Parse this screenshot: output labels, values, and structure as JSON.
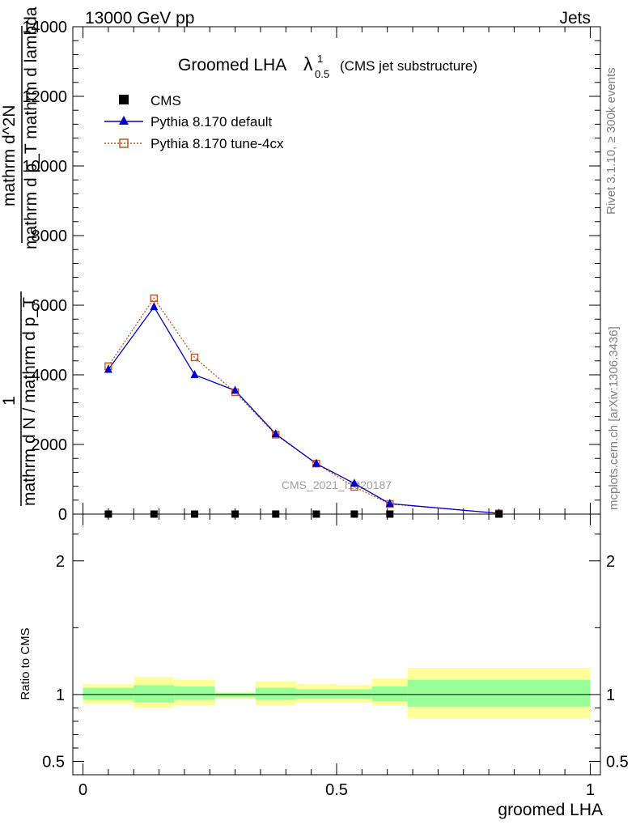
{
  "header": {
    "left": "13000 GeV pp",
    "right": "Jets"
  },
  "title": {
    "main": "Groomed LHA",
    "lambda": "λ",
    "superscript": "1",
    "subscript": "0.5",
    "suffix": "(CMS jet substructure)"
  },
  "side_labels": {
    "rivet": "Rivet 3.1.10, ≥ 300k events",
    "mcplots": "mcplots.cern.ch [arXiv:1306.3436]"
  },
  "watermark": "CMS_2021_I1920187",
  "y_label_top": {
    "one": "1",
    "den": "mathrm d N / mathrm d p_T",
    "frac_num": "mathrm d^2N",
    "frac_den": "mathrm d p_T mathrm d lambda"
  },
  "y_label_ratio": "Ratio to CMS",
  "x_label": "groomed LHA",
  "legend": [
    {
      "label": "CMS"
    },
    {
      "label": "Pythia 8.170 default"
    },
    {
      "label": "Pythia 8.170 tune-4cx"
    }
  ],
  "colors": {
    "cms": "#000000",
    "default": "#0000cc",
    "tune": "#c0561e",
    "band_inner": "#99ff99",
    "band_outer": "#ffff99"
  },
  "chart_data": [
    {
      "type": "line",
      "panel": "main",
      "xlim": [
        -0.02,
        1.02
      ],
      "ylim": [
        0,
        14000
      ],
      "y_ticks": [
        0,
        2000,
        4000,
        6000,
        8000,
        10000,
        12000,
        14000
      ],
      "y_tick_labels": [
        "0",
        "2000",
        "4000",
        "6000",
        "8000",
        "10000",
        "12000",
        "14000"
      ],
      "series": [
        {
          "name": "CMS",
          "marker": "square",
          "x": [
            0.05,
            0.14,
            0.22,
            0.3,
            0.38,
            0.46,
            0.535,
            0.605,
            0.82
          ],
          "y": [
            0,
            0,
            0,
            0,
            0,
            0,
            0,
            0,
            0
          ]
        },
        {
          "name": "Pythia 8.170 default",
          "marker": "triangle",
          "x": [
            0.05,
            0.14,
            0.22,
            0.3,
            0.38,
            0.46,
            0.535,
            0.605,
            0.82
          ],
          "y": [
            4150,
            5950,
            4000,
            3550,
            2300,
            1450,
            880,
            300,
            20
          ]
        },
        {
          "name": "Pythia 8.170 tune-4cx",
          "marker": "open-square",
          "x": [
            0.05,
            0.14,
            0.22,
            0.3,
            0.38,
            0.46,
            0.535,
            0.605,
            0.82
          ],
          "y": [
            4250,
            6200,
            4500,
            3500,
            2280,
            1450,
            780,
            290,
            20
          ]
        }
      ]
    },
    {
      "type": "area",
      "panel": "ratio",
      "xlim": [
        -0.02,
        1.02
      ],
      "ylim": [
        0.4,
        2.35
      ],
      "y_ticks": [
        0.5,
        1,
        2
      ],
      "y_tick_labels": [
        "0.5",
        "1",
        "2"
      ],
      "x_ticks": [
        0,
        0.5,
        1
      ],
      "x_tick_labels": [
        "0",
        "0.5",
        "1"
      ],
      "bins": [
        {
          "x0": 0.0,
          "x1": 0.1,
          "inner": [
            0.96,
            1.05
          ],
          "outer": [
            0.93,
            1.08
          ]
        },
        {
          "x0": 0.1,
          "x1": 0.18,
          "inner": [
            0.94,
            1.07
          ],
          "outer": [
            0.9,
            1.13
          ]
        },
        {
          "x0": 0.18,
          "x1": 0.26,
          "inner": [
            0.96,
            1.06
          ],
          "outer": [
            0.92,
            1.11
          ]
        },
        {
          "x0": 0.26,
          "x1": 0.34,
          "inner": [
            0.98,
            1.01
          ],
          "outer": [
            0.97,
            1.02
          ]
        },
        {
          "x0": 0.34,
          "x1": 0.42,
          "inner": [
            0.96,
            1.05
          ],
          "outer": [
            0.92,
            1.1
          ]
        },
        {
          "x0": 0.42,
          "x1": 0.5,
          "inner": [
            0.97,
            1.04
          ],
          "outer": [
            0.94,
            1.08
          ]
        },
        {
          "x0": 0.5,
          "x1": 0.57,
          "inner": [
            0.97,
            1.04
          ],
          "outer": [
            0.94,
            1.07
          ]
        },
        {
          "x0": 0.57,
          "x1": 0.64,
          "inner": [
            0.95,
            1.06
          ],
          "outer": [
            0.92,
            1.12
          ]
        },
        {
          "x0": 0.64,
          "x1": 1.0,
          "inner": [
            0.91,
            1.11
          ],
          "outer": [
            0.82,
            1.2
          ]
        }
      ]
    }
  ]
}
